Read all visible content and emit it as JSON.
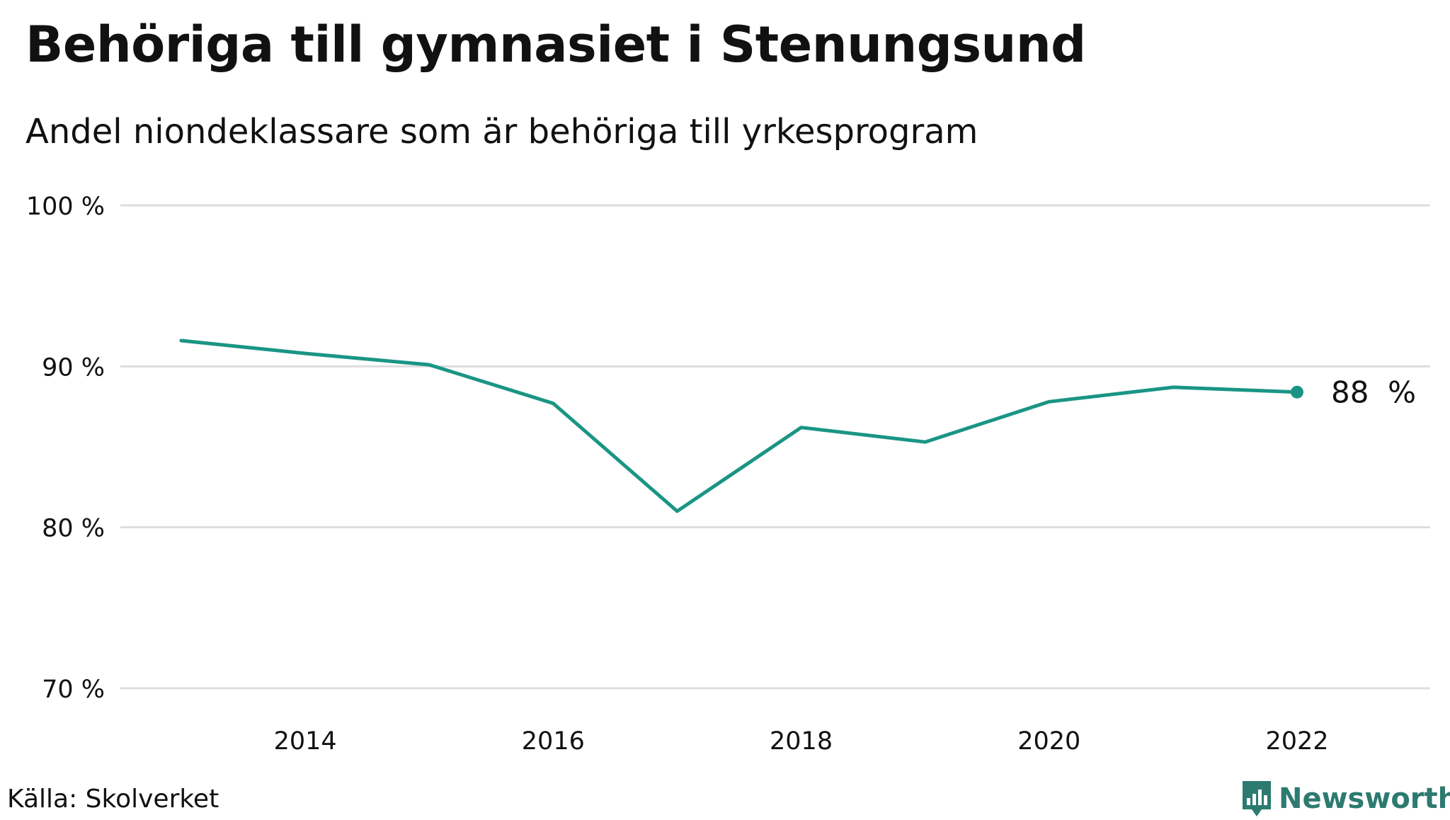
{
  "title": "Behöriga till gymnasiet i Stenungsund",
  "subtitle": "Andel niondeklassare som är behöriga till yrkesprogram",
  "source": "Källa: Skolverket",
  "brand": "Newsworthy",
  "colors": {
    "line": "#1a9585",
    "grid": "#dddddd",
    "brand": "#2c7a70"
  },
  "chart_data": {
    "type": "line",
    "title": "Behöriga till gymnasiet i Stenungsund",
    "subtitle": "Andel niondeklassare som är behöriga till yrkesprogram",
    "x": [
      2013,
      2014,
      2015,
      2016,
      2017,
      2018,
      2019,
      2020,
      2021,
      2022
    ],
    "series": [
      {
        "values": [
          91.6,
          90.8,
          90.1,
          87.7,
          81.0,
          86.2,
          85.3,
          87.8,
          88.7,
          88.4
        ]
      }
    ],
    "xticks": [
      2014,
      2016,
      2018,
      2020,
      2022
    ],
    "yticks": [
      70,
      80,
      90,
      100
    ],
    "ytick_labels": [
      "70 %",
      "80 %",
      "90 %",
      "100 %"
    ],
    "ylim": [
      70,
      100
    ],
    "end_label": "88  %",
    "grid": true,
    "legend": "none"
  }
}
